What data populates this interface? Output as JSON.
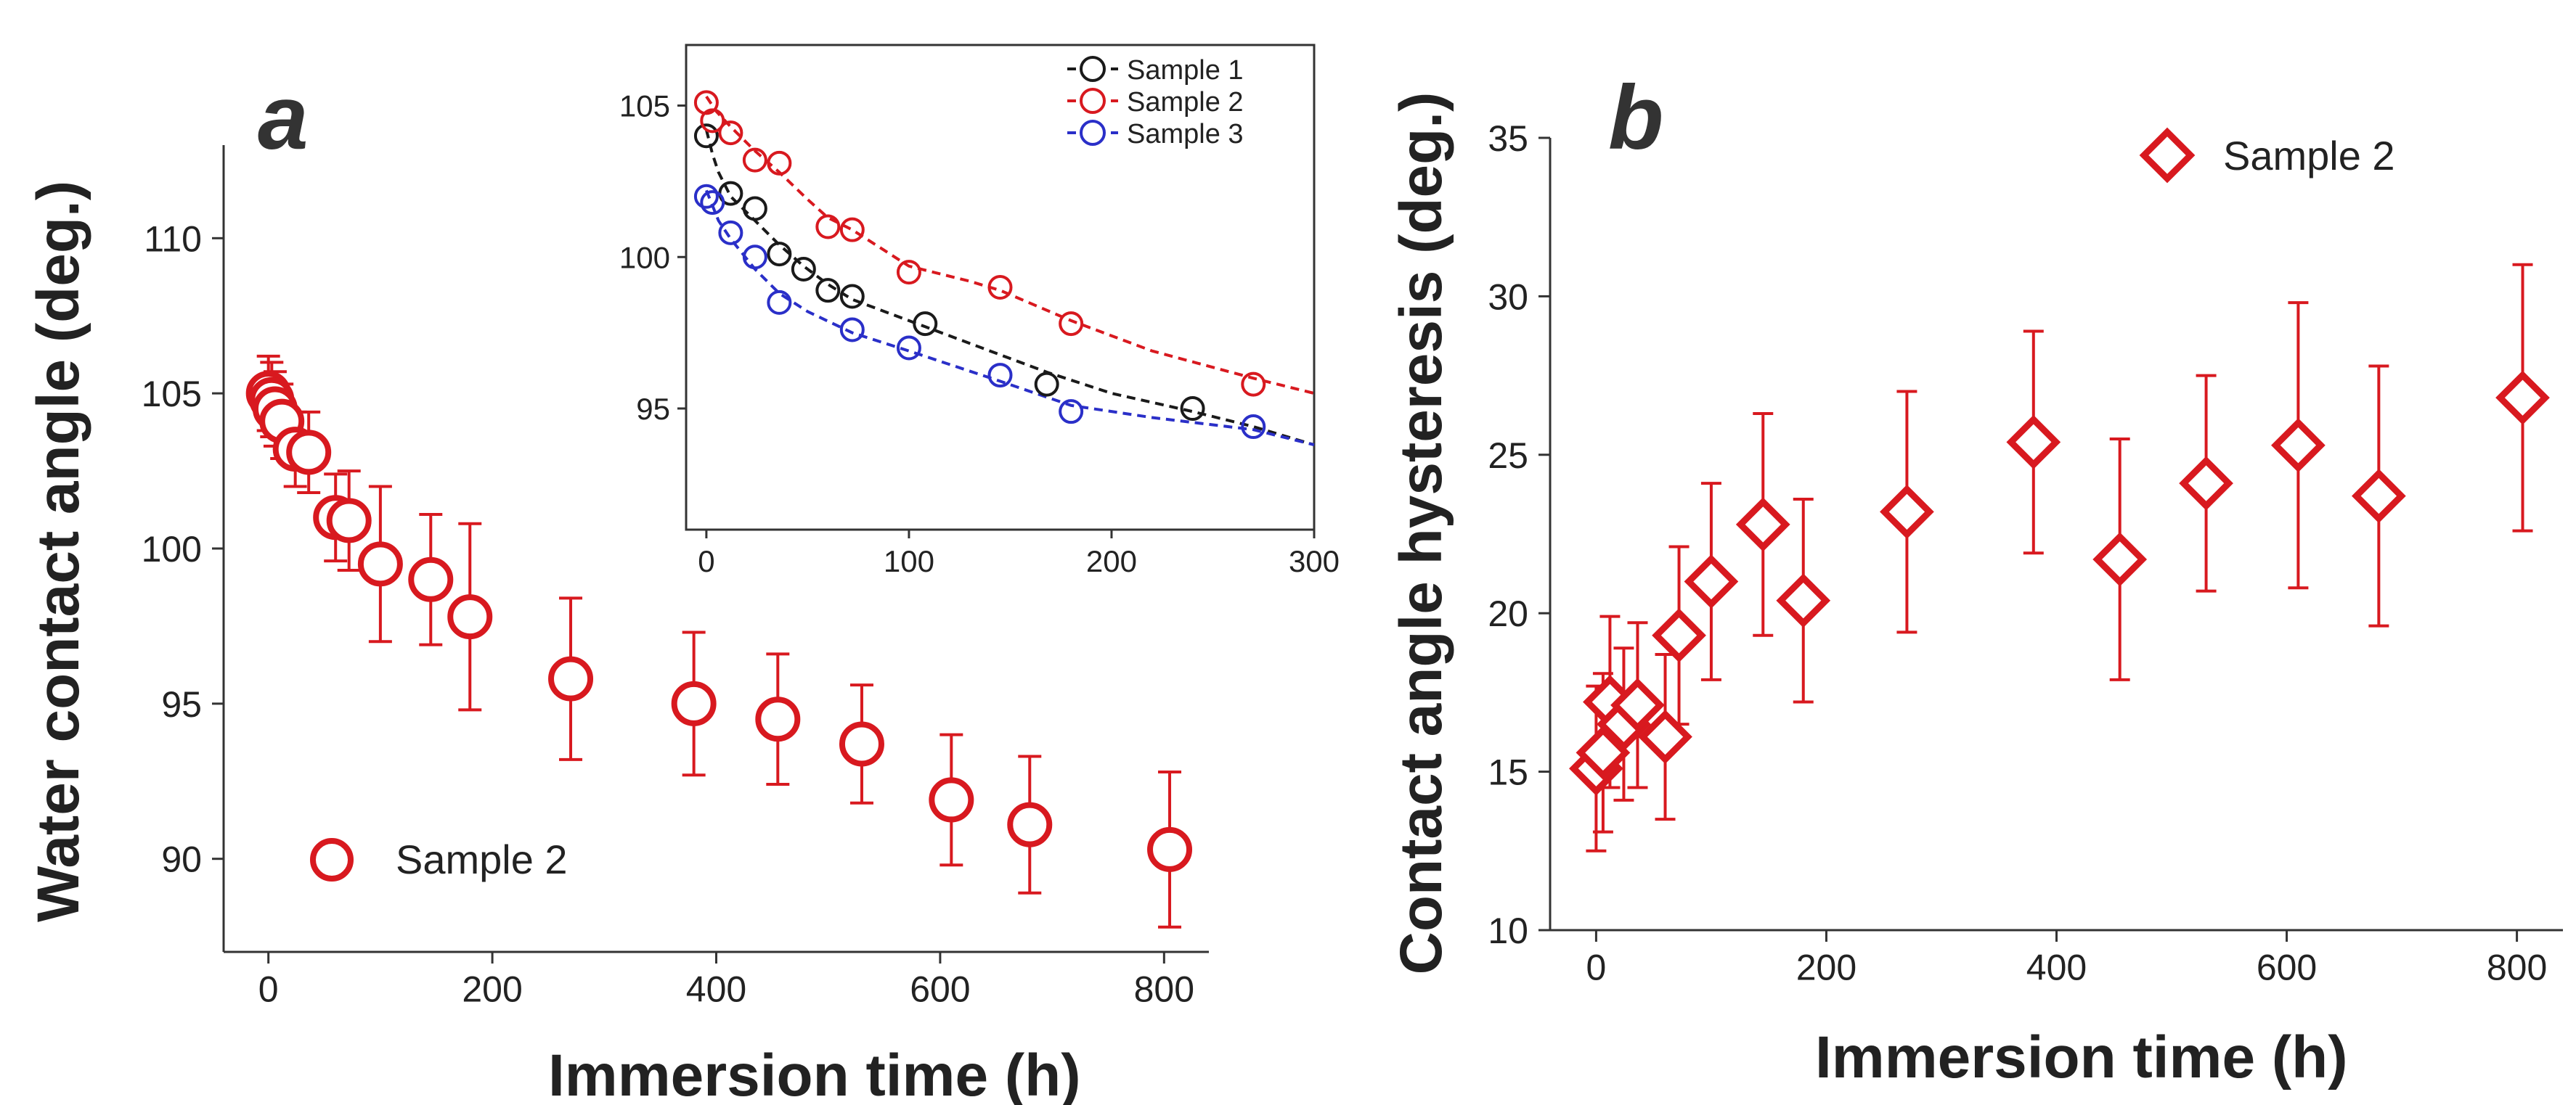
{
  "colors": {
    "red": "#d8191f",
    "black": "#1a1a1a",
    "blue": "#2a2fc8",
    "axis": "#333333"
  },
  "chart_data": [
    {
      "id": "a",
      "type": "scatter",
      "panel_label": "a",
      "xlabel": "Immersion time (h)",
      "ylabel": "Water contact angle (deg.)",
      "xlim": [
        -40,
        840
      ],
      "ylim": [
        87,
        113
      ],
      "xticks": [
        0,
        200,
        400,
        600,
        800
      ],
      "yticks": [
        90,
        95,
        100,
        105,
        110
      ],
      "marker": "circle",
      "legend": "bottom-left",
      "series": [
        {
          "name": "Sample 2",
          "color": "red",
          "x": [
            0,
            3,
            6,
            12,
            24,
            36,
            60,
            72,
            100,
            145,
            180,
            270,
            380,
            455,
            530,
            610,
            680,
            805
          ],
          "y": [
            105.0,
            104.8,
            104.5,
            104.1,
            103.2,
            103.1,
            101.0,
            100.9,
            99.5,
            99.0,
            97.8,
            95.8,
            95.0,
            94.5,
            93.7,
            91.9,
            91.1,
            90.3
          ],
          "err": [
            1.2,
            1.2,
            1.2,
            1.2,
            1.2,
            1.3,
            1.4,
            1.6,
            2.5,
            2.1,
            3.0,
            2.6,
            2.3,
            2.1,
            1.9,
            2.1,
            2.2,
            2.5
          ]
        }
      ]
    },
    {
      "id": "a-inset",
      "type": "line",
      "xlim": [
        -10,
        300
      ],
      "ylim": [
        91,
        107
      ],
      "xticks": [
        0,
        100,
        200,
        300
      ],
      "yticks": [
        95,
        100,
        105
      ],
      "marker": "circle",
      "line_style": "dashed",
      "legend": "top-right",
      "series": [
        {
          "name": "Sample 1",
          "color": "black",
          "x": [
            0,
            12,
            24,
            36,
            48,
            60,
            72,
            108,
            168,
            240
          ],
          "y": [
            104.0,
            102.1,
            101.6,
            100.1,
            99.6,
            98.9,
            98.7,
            97.8,
            95.8,
            95.0
          ],
          "fit_x": [
            0,
            3,
            6,
            12,
            24,
            36,
            48,
            60,
            72,
            108,
            140,
            168,
            200,
            240,
            270,
            300
          ],
          "fit_y": [
            104.2,
            103.4,
            102.8,
            102.0,
            101.2,
            100.4,
            99.7,
            99.1,
            98.6,
            97.7,
            96.9,
            96.2,
            95.5,
            94.9,
            94.4,
            93.8
          ]
        },
        {
          "name": "Sample 2",
          "color": "red",
          "x": [
            0,
            3,
            12,
            24,
            36,
            60,
            72,
            100,
            145,
            180,
            270
          ],
          "y": [
            105.1,
            104.5,
            104.1,
            103.2,
            103.1,
            101.0,
            100.9,
            99.5,
            99.0,
            97.8,
            95.8
          ],
          "fit_x": [
            0,
            5,
            12,
            24,
            36,
            50,
            60,
            72,
            100,
            130,
            145,
            180,
            220,
            270,
            300
          ],
          "fit_y": [
            105.3,
            104.8,
            104.3,
            103.5,
            102.8,
            101.9,
            101.3,
            100.9,
            99.7,
            99.2,
            98.9,
            97.9,
            96.9,
            96.0,
            95.5
          ]
        },
        {
          "name": "Sample 3",
          "color": "blue",
          "x": [
            0,
            3,
            12,
            24,
            36,
            72,
            100,
            145,
            180,
            270
          ],
          "y": [
            102.0,
            101.8,
            100.8,
            100.0,
            98.5,
            97.6,
            97.0,
            96.1,
            94.9,
            94.4
          ],
          "fit_x": [
            0,
            3,
            6,
            12,
            24,
            36,
            50,
            72,
            100,
            145,
            180,
            220,
            270,
            300
          ],
          "fit_y": [
            102.2,
            101.7,
            101.2,
            100.6,
            99.6,
            98.8,
            98.2,
            97.5,
            96.9,
            95.9,
            95.1,
            94.7,
            94.3,
            93.8
          ]
        }
      ]
    },
    {
      "id": "b",
      "type": "scatter",
      "panel_label": "b",
      "xlabel": "Immersion time (h)",
      "ylabel": "Contact angle hysteresis (deg.)",
      "xlim": [
        -40,
        840
      ],
      "ylim": [
        10,
        35
      ],
      "xticks": [
        0,
        200,
        400,
        600,
        800
      ],
      "yticks": [
        10,
        15,
        20,
        25,
        30,
        35
      ],
      "marker": "diamond",
      "legend": "top",
      "series": [
        {
          "name": "Sample 2",
          "color": "red",
          "x": [
            0,
            6,
            12,
            24,
            36,
            60,
            72,
            100,
            145,
            180,
            270,
            380,
            455,
            530,
            610,
            680,
            805
          ],
          "y": [
            15.1,
            15.6,
            17.2,
            16.5,
            17.1,
            16.1,
            19.3,
            21.0,
            22.8,
            20.4,
            23.2,
            25.4,
            21.7,
            24.1,
            25.3,
            23.7,
            26.8
          ],
          "err": [
            2.6,
            2.5,
            2.7,
            2.4,
            2.6,
            2.6,
            2.8,
            3.1,
            3.5,
            3.2,
            3.8,
            3.5,
            3.8,
            3.4,
            4.5,
            4.1,
            4.2
          ]
        }
      ]
    }
  ]
}
